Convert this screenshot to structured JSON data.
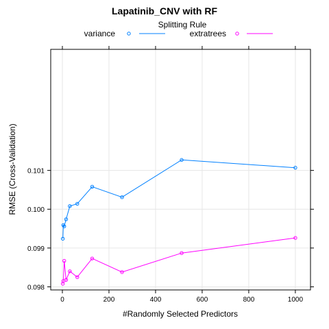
{
  "chart_data": {
    "type": "line",
    "title": "Lapatinib_CNV with RF",
    "legend_title": "Splitting Rule",
    "legend_position": "top",
    "xlabel": "#Randomly Selected Predictors",
    "ylabel": "RMSE (Cross-Validation)",
    "xlim": [
      -50,
      1065
    ],
    "ylim": [
      0.09792,
      0.10412
    ],
    "xticks": [
      0,
      200,
      400,
      600,
      800,
      1000
    ],
    "yticks": [
      0.098,
      0.099,
      0.1,
      0.101
    ],
    "ytick_labels": [
      "0.098",
      "0.099",
      "0.100",
      "0.101"
    ],
    "grid": true,
    "series": [
      {
        "name": "variance",
        "color": "#0080ff",
        "x": [
          2,
          4,
          8,
          16,
          32,
          64,
          128,
          256,
          512,
          1000
        ],
        "y": [
          0.09924,
          0.09959,
          0.09956,
          0.09974,
          0.10008,
          0.10014,
          0.10058,
          0.10031,
          0.10127,
          0.10107
        ]
      },
      {
        "name": "extratrees",
        "color": "#ff00ff",
        "x": [
          2,
          4,
          8,
          16,
          32,
          64,
          128,
          256,
          512,
          1000
        ],
        "y": [
          0.09808,
          0.09815,
          0.09867,
          0.09818,
          0.0984,
          0.09825,
          0.09873,
          0.09838,
          0.09887,
          0.09926
        ]
      }
    ]
  }
}
